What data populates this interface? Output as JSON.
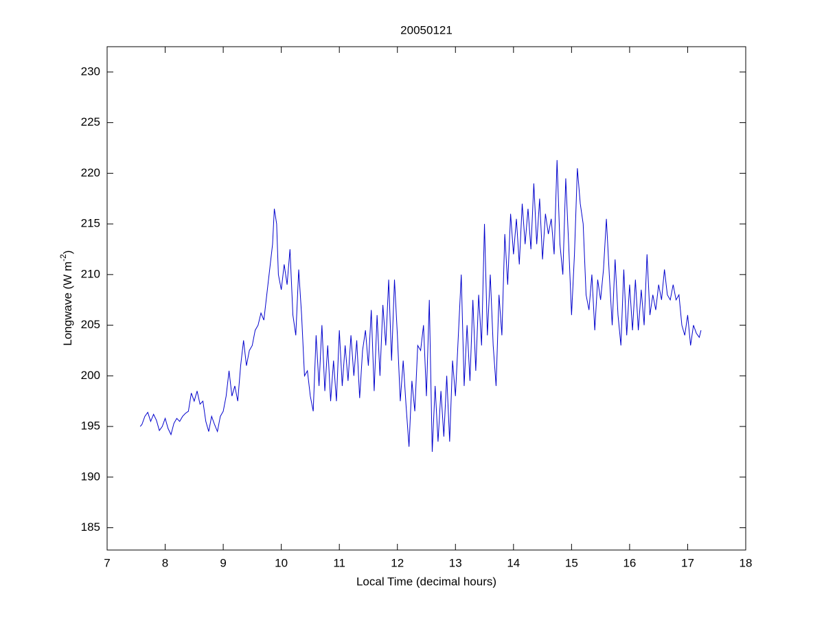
{
  "chart_data": {
    "type": "line",
    "title": "20050121",
    "xlabel": "Local Time (decimal hours)",
    "ylabel": {
      "text": "Longwave (W m",
      "sup": "-2",
      "end": ")"
    },
    "xlim": [
      7,
      18
    ],
    "xticks": [
      7,
      8,
      9,
      10,
      11,
      12,
      13,
      14,
      15,
      16,
      17,
      18
    ],
    "ylim": [
      182.8,
      232.5
    ],
    "yticks": [
      185,
      190,
      195,
      200,
      205,
      210,
      215,
      220,
      225,
      230
    ],
    "grid": false,
    "x": [
      7.57,
      7.6,
      7.65,
      7.7,
      7.75,
      7.8,
      7.85,
      7.9,
      7.95,
      8.0,
      8.05,
      8.1,
      8.15,
      8.2,
      8.25,
      8.3,
      8.35,
      8.4,
      8.45,
      8.5,
      8.55,
      8.6,
      8.65,
      8.7,
      8.75,
      8.8,
      8.85,
      8.9,
      8.95,
      9.0,
      9.05,
      9.1,
      9.15,
      9.2,
      9.25,
      9.3,
      9.35,
      9.4,
      9.45,
      9.5,
      9.55,
      9.6,
      9.65,
      9.7,
      9.75,
      9.8,
      9.85,
      9.88,
      9.92,
      9.95,
      10.0,
      10.05,
      10.1,
      10.15,
      10.2,
      10.25,
      10.3,
      10.35,
      10.4,
      10.45,
      10.5,
      10.55,
      10.6,
      10.65,
      10.7,
      10.75,
      10.8,
      10.85,
      10.9,
      10.95,
      11.0,
      11.05,
      11.1,
      11.15,
      11.2,
      11.25,
      11.3,
      11.35,
      11.4,
      11.45,
      11.5,
      11.55,
      11.6,
      11.65,
      11.7,
      11.75,
      11.8,
      11.85,
      11.9,
      11.95,
      12.0,
      12.05,
      12.1,
      12.15,
      12.2,
      12.25,
      12.3,
      12.35,
      12.4,
      12.45,
      12.5,
      12.55,
      12.6,
      12.65,
      12.7,
      12.75,
      12.8,
      12.85,
      12.9,
      12.95,
      13.0,
      13.05,
      13.1,
      13.15,
      13.2,
      13.25,
      13.3,
      13.35,
      13.4,
      13.45,
      13.5,
      13.55,
      13.6,
      13.65,
      13.7,
      13.75,
      13.8,
      13.85,
      13.9,
      13.95,
      14.0,
      14.05,
      14.1,
      14.15,
      14.2,
      14.25,
      14.3,
      14.35,
      14.4,
      14.45,
      14.5,
      14.55,
      14.6,
      14.65,
      14.7,
      14.75,
      14.8,
      14.85,
      14.9,
      14.95,
      15.0,
      15.05,
      15.1,
      15.15,
      15.2,
      15.25,
      15.3,
      15.35,
      15.4,
      15.45,
      15.5,
      15.55,
      15.6,
      15.65,
      15.7,
      15.75,
      15.8,
      15.85,
      15.9,
      15.95,
      16.0,
      16.05,
      16.1,
      16.15,
      16.2,
      16.25,
      16.3,
      16.35,
      16.4,
      16.45,
      16.5,
      16.55,
      16.6,
      16.65,
      16.7,
      16.75,
      16.8,
      16.85,
      16.9,
      16.95,
      17.0,
      17.05,
      17.1,
      17.15,
      17.2,
      17.23
    ],
    "series": [
      {
        "color": "#0000cc",
        "values": [
          195,
          195.2,
          196,
          196.4,
          195.5,
          196.2,
          195.6,
          194.6,
          195,
          195.8,
          194.8,
          194.2,
          195.3,
          195.8,
          195.5,
          196,
          196.3,
          196.5,
          198.3,
          197.5,
          198.5,
          197.2,
          197.5,
          195.5,
          194.5,
          196,
          195.2,
          194.5,
          196,
          196.5,
          198,
          200.5,
          198,
          199,
          197.5,
          201,
          203.5,
          201,
          202.5,
          203,
          204.5,
          205,
          206.2,
          205.5,
          208,
          210.5,
          213,
          216.5,
          215,
          210,
          208.5,
          211,
          209,
          212.5,
          206,
          204,
          210.5,
          206,
          200,
          200.5,
          198,
          196.5,
          204,
          199,
          205,
          198.5,
          203,
          197.5,
          201.5,
          197.5,
          204.5,
          199,
          203,
          199.5,
          204,
          200,
          203.5,
          197.8,
          202.5,
          204.5,
          201,
          206.5,
          198.5,
          206,
          200,
          207,
          203,
          209.5,
          201.5,
          209.5,
          204,
          197.5,
          201.5,
          197,
          193,
          199.5,
          196.5,
          203,
          202.5,
          205,
          198,
          207.5,
          192.5,
          199,
          193.5,
          198.5,
          194,
          200,
          193.5,
          201.5,
          198,
          204,
          210,
          199,
          205,
          199.5,
          207.5,
          200.5,
          208,
          203,
          215,
          204,
          210,
          203,
          199,
          208,
          204,
          214,
          209,
          216,
          212,
          215.5,
          211,
          217,
          213,
          216.5,
          212.5,
          219,
          213,
          217.5,
          211.5,
          216,
          214,
          215.5,
          212,
          221.3,
          213,
          210,
          219.5,
          213,
          206,
          212,
          220.5,
          217,
          215,
          208,
          206.5,
          210,
          204.5,
          209.5,
          207.5,
          210.5,
          215.5,
          210,
          205,
          211.5,
          206,
          203,
          210.5,
          204,
          209,
          204.5,
          209.5,
          204.5,
          208.5,
          205,
          212,
          206,
          208,
          206.5,
          209,
          207.5,
          210.5,
          208,
          207.5,
          209,
          207.5,
          208,
          205,
          204,
          206,
          203,
          205,
          204.2,
          203.8,
          204.5
        ]
      }
    ]
  }
}
